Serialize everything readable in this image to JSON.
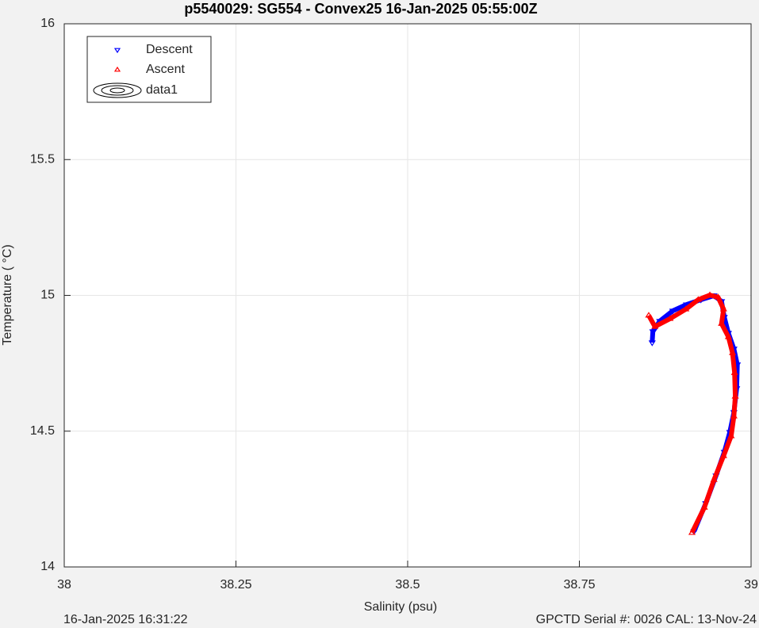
{
  "chart_data": {
    "type": "scatter",
    "title": "p5540029: SG554 - Convex25 16-Jan-2025 05:55:00Z",
    "x_label": "Salinity (psu)",
    "y_label": "Temperature (   °C)",
    "xlim": [
      38,
      39
    ],
    "xticks": [
      38,
      38.25,
      38.5,
      38.75,
      39
    ],
    "ylim": [
      14,
      16
    ],
    "yticks": [
      14,
      14.5,
      15,
      15.5,
      16
    ],
    "grid": true,
    "legend": "upper left",
    "contour_legend": "data1",
    "series": [
      {
        "name": "Descent",
        "color": "#0000ff",
        "marker": "down",
        "x": [
          38.856,
          38.857,
          38.867,
          38.886,
          38.906,
          38.927,
          38.946,
          38.957,
          38.961,
          38.967,
          38.975,
          38.98,
          38.979,
          38.975,
          38.969,
          38.961,
          38.949,
          38.934,
          38.917
        ],
        "values": [
          14.826,
          14.867,
          14.905,
          14.943,
          14.966,
          14.984,
          14.999,
          14.978,
          14.92,
          14.861,
          14.803,
          14.745,
          14.657,
          14.569,
          14.496,
          14.423,
          14.336,
          14.234,
          14.131
        ]
      },
      {
        "name": "Ascent",
        "color": "#ff0000",
        "marker": "up",
        "x": [
          38.851,
          38.86,
          38.882,
          38.905,
          38.923,
          38.94,
          38.952,
          38.96,
          38.957,
          38.967,
          38.973,
          38.976,
          38.977,
          38.975,
          38.971,
          38.96,
          38.946,
          38.932,
          38.914
        ],
        "values": [
          14.926,
          14.885,
          14.914,
          14.949,
          14.984,
          15.001,
          14.993,
          14.949,
          14.896,
          14.847,
          14.788,
          14.715,
          14.628,
          14.555,
          14.482,
          14.409,
          14.321,
          14.219,
          14.126
        ]
      }
    ],
    "footer_left": "16-Jan-2025 16:31:22",
    "footer_right": "GPCTD Serial #: 0026 CAL: 13-Nov-24"
  }
}
